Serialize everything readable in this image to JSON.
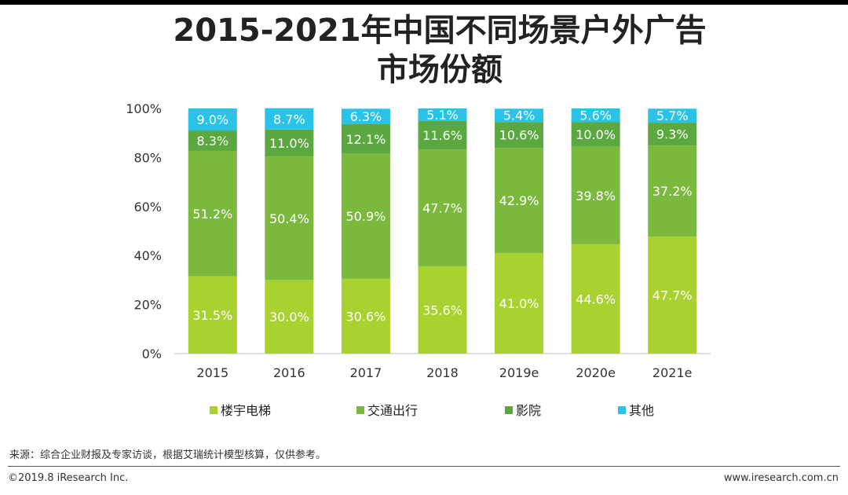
{
  "page": {
    "title_line1": "2015-2021年中国不同场景户外广告",
    "title_line2": "市场份额",
    "source": "来源：综合企业财报及专家访谈，根据艾瑞统计模型核算，仅供参考。",
    "copyright": "©2019.8 iResearch Inc.",
    "website": "www.iresearch.com.cn"
  },
  "chart_data": {
    "type": "bar",
    "stacked": true,
    "categories": [
      "2015",
      "2016",
      "2017",
      "2018",
      "2019e",
      "2020e",
      "2021e"
    ],
    "series": [
      {
        "name": "楼宇电梯",
        "color": "#a9d12f",
        "values": [
          31.5,
          30.0,
          30.6,
          35.6,
          41.0,
          44.6,
          47.7
        ]
      },
      {
        "name": "交通出行",
        "color": "#7ab83e",
        "values": [
          51.2,
          50.4,
          50.9,
          47.7,
          42.9,
          39.8,
          37.2
        ]
      },
      {
        "name": "影院",
        "color": "#5aa83f",
        "values": [
          8.3,
          11.0,
          12.1,
          11.6,
          10.6,
          10.0,
          9.3
        ]
      },
      {
        "name": "其他",
        "color": "#2ac3e8",
        "values": [
          9.0,
          8.7,
          6.3,
          5.1,
          5.4,
          5.6,
          5.7
        ]
      }
    ],
    "ylim": [
      0,
      100
    ],
    "yticks": [
      "0%",
      "20%",
      "40%",
      "60%",
      "80%",
      "100%"
    ],
    "legend_position": "bottom",
    "grid": false
  }
}
